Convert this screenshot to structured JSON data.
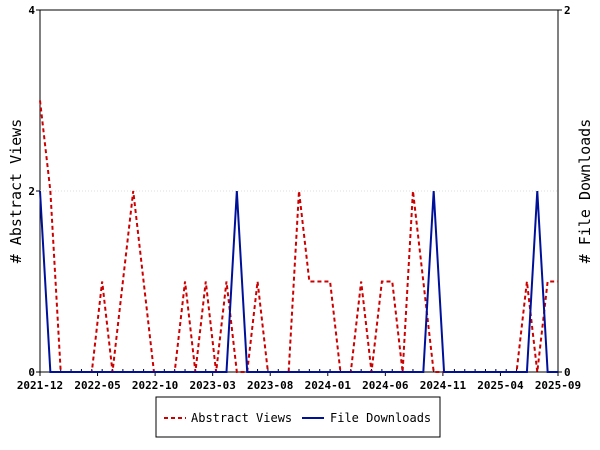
{
  "chart_data": {
    "type": "line",
    "title": "",
    "x_tick_labels": [
      "2021-12",
      "2022-05",
      "2022-10",
      "2023-03",
      "2023-08",
      "2024-01",
      "2024-06",
      "2024-11",
      "2025-04",
      "2025-09"
    ],
    "left_axis": {
      "label": "# Abstract Views",
      "ylim": [
        0,
        4
      ],
      "tick_labels": [
        "0",
        "2",
        "4"
      ]
    },
    "right_axis": {
      "label": "# File Downloads",
      "ylim": [
        0,
        2
      ],
      "tick_labels": [
        "0",
        "2"
      ]
    },
    "series": [
      {
        "name": "Abstract Views",
        "axis": "left",
        "color": "#cc0000",
        "style": "dashed",
        "values": [
          3,
          2,
          0,
          0,
          0,
          0,
          1,
          0,
          1,
          2,
          1,
          0,
          0,
          0,
          1,
          0,
          1,
          0,
          1,
          0,
          0,
          1,
          0,
          0,
          0,
          2,
          1,
          1,
          1,
          0,
          0,
          1,
          0,
          1,
          1,
          0,
          2,
          1,
          0,
          0,
          0,
          0,
          0,
          0,
          0,
          0,
          0,
          1,
          0,
          1,
          1
        ]
      },
      {
        "name": "File Downloads",
        "axis": "right",
        "color": "#001199",
        "style": "solid",
        "values": [
          1,
          0,
          0,
          0,
          0,
          0,
          0,
          0,
          0,
          0,
          0,
          0,
          0,
          0,
          0,
          0,
          0,
          0,
          0,
          1,
          0,
          0,
          0,
          0,
          0,
          0,
          0,
          0,
          0,
          0,
          0,
          0,
          0,
          0,
          0,
          0,
          0,
          0,
          1,
          0,
          0,
          0,
          0,
          0,
          0,
          0,
          0,
          0,
          1,
          0,
          0
        ]
      }
    ],
    "legend": {
      "position": "bottom"
    }
  }
}
